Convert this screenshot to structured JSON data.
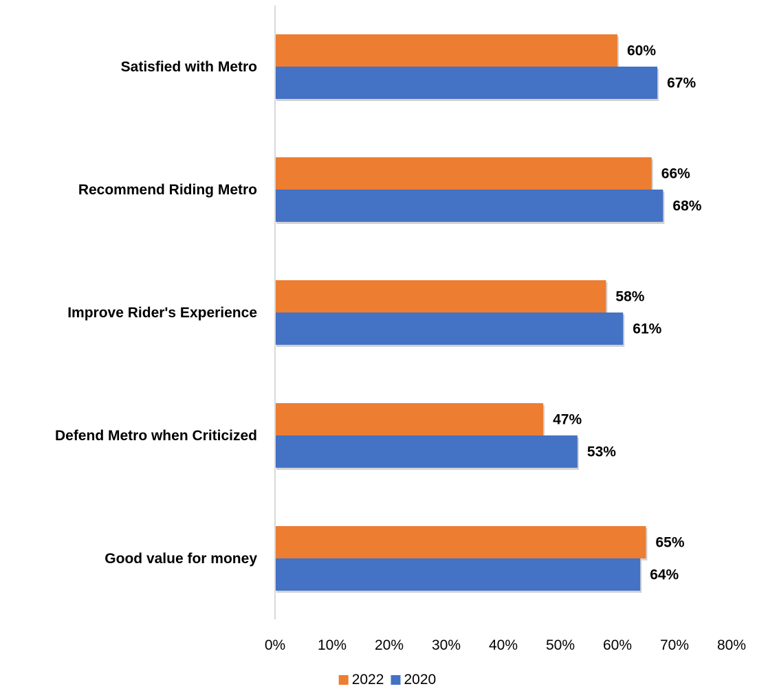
{
  "chart_data": {
    "type": "bar",
    "orientation": "horizontal",
    "title": "",
    "xlabel": "",
    "ylabel": "",
    "categories": [
      "Satisfied with Metro",
      "Recommend Riding Metro",
      "Improve Rider's Experience",
      "Defend Metro when Criticized",
      "Good value for money"
    ],
    "series": [
      {
        "name": "2022",
        "color": "#ED7D31",
        "values": [
          60,
          66,
          58,
          47,
          65
        ],
        "labels": [
          "60%",
          "66%",
          "58%",
          "47%",
          "65%"
        ]
      },
      {
        "name": "2020",
        "color": "#4472C4",
        "values": [
          67,
          68,
          61,
          53,
          64
        ],
        "labels": [
          "67%",
          "68%",
          "61%",
          "53%",
          "64%"
        ]
      }
    ],
    "xlim": [
      0,
      80
    ],
    "x_ticks": [
      0,
      10,
      20,
      30,
      40,
      50,
      60,
      70,
      80
    ],
    "x_tick_labels": [
      "0%",
      "10%",
      "20%",
      "30%",
      "40%",
      "50%",
      "60%",
      "70%",
      "80%"
    ],
    "grid": false,
    "legend_position": "bottom",
    "legend": [
      "2022",
      "2020"
    ]
  }
}
